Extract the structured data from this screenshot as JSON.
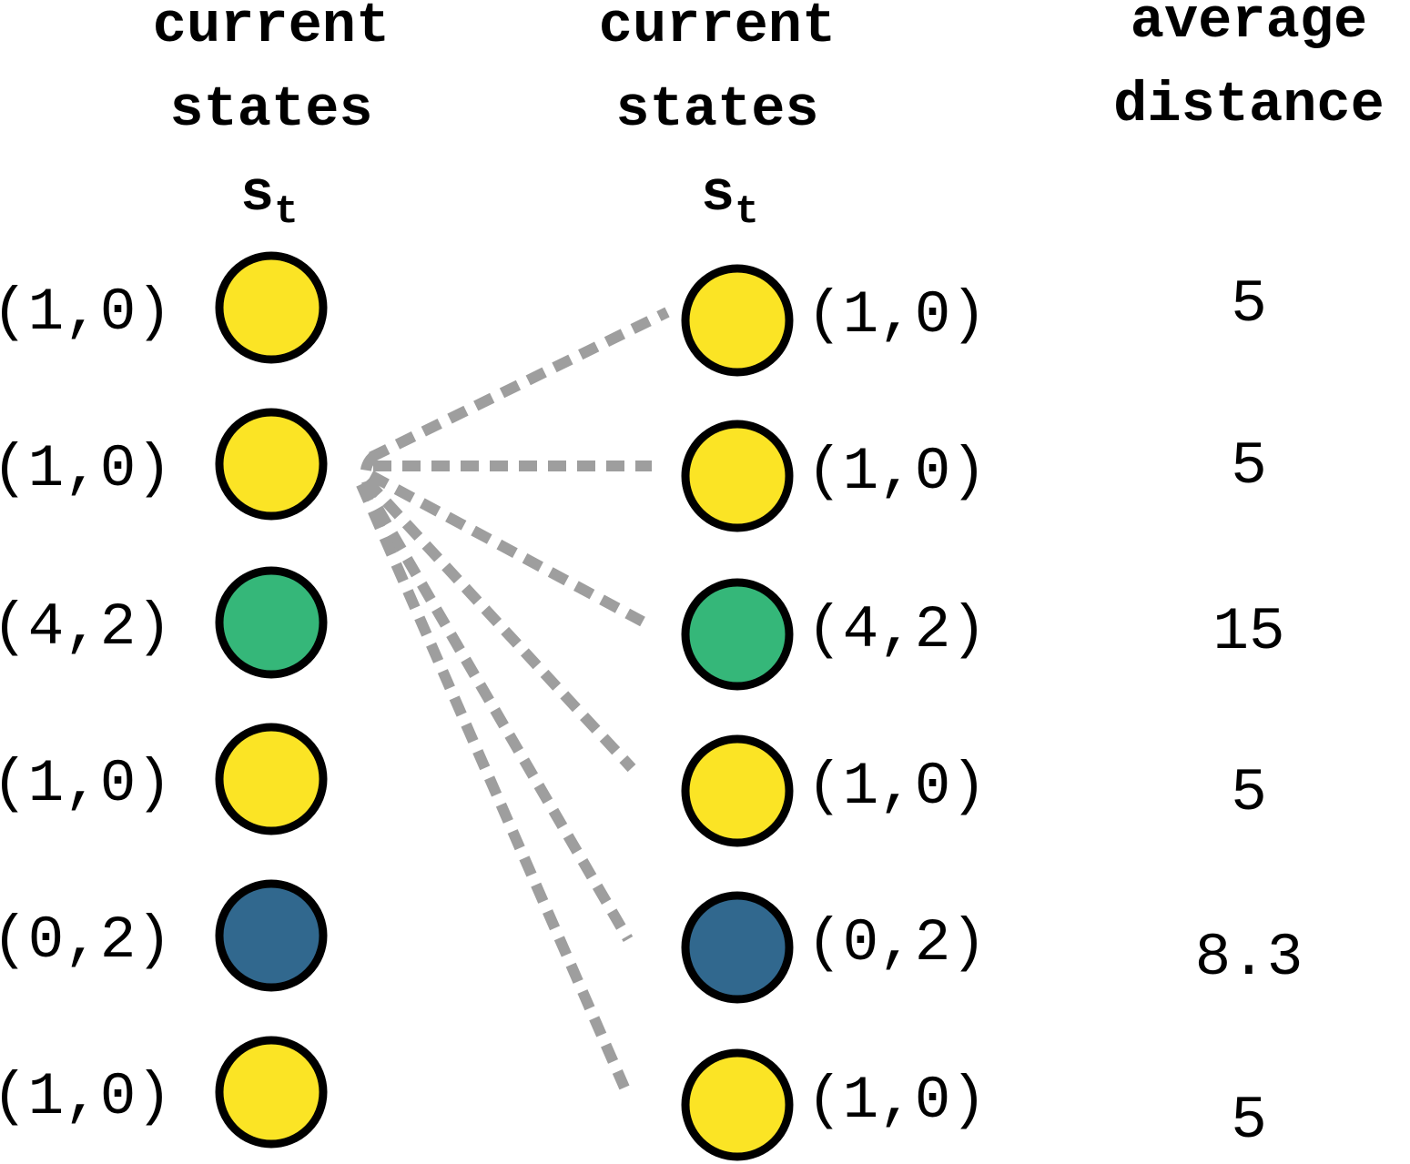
{
  "colors": {
    "yellow": "#fbe425",
    "green": "#35b779",
    "blue": "#31688e",
    "connector": "#9e9e9e"
  },
  "left_column": {
    "header_line1": "current",
    "header_line2": "states",
    "symbol": "s",
    "subscript": "t",
    "nodes": [
      {
        "label": "(1,0)",
        "color": "yellow"
      },
      {
        "label": "(1,0)",
        "color": "yellow"
      },
      {
        "label": "(4,2)",
        "color": "green"
      },
      {
        "label": "(1,0)",
        "color": "yellow"
      },
      {
        "label": "(0,2)",
        "color": "blue"
      },
      {
        "label": "(1,0)",
        "color": "yellow"
      }
    ]
  },
  "right_column": {
    "header_line1": "current",
    "header_line2": "states",
    "symbol": "s",
    "subscript": "t",
    "nodes": [
      {
        "label": "(1,0)",
        "color": "yellow"
      },
      {
        "label": "(1,0)",
        "color": "yellow"
      },
      {
        "label": "(4,2)",
        "color": "green"
      },
      {
        "label": "(1,0)",
        "color": "yellow"
      },
      {
        "label": "(0,2)",
        "color": "blue"
      },
      {
        "label": "(1,0)",
        "color": "yellow"
      }
    ]
  },
  "distance_column": {
    "header_line1": "average",
    "header_line2": "distance",
    "values": [
      "5",
      "5",
      "15",
      "5",
      "8.3",
      "5"
    ]
  },
  "connections": {
    "from_left_node": 1,
    "to_right_nodes": [
      0,
      1,
      2,
      3,
      4,
      5
    ]
  }
}
